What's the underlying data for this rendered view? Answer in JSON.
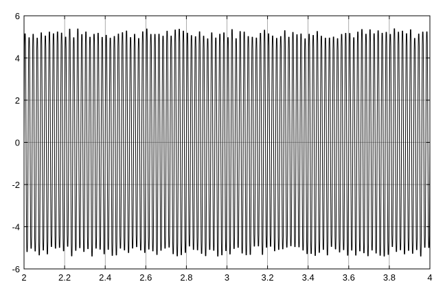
{
  "chart_data": {
    "type": "line",
    "title": "",
    "xlabel": "",
    "ylabel": "",
    "xlim": [
      2,
      4
    ],
    "ylim": [
      -6,
      6
    ],
    "grid": true,
    "x_ticks": [
      2,
      2.2,
      2.4,
      2.6,
      2.8,
      3,
      3.2,
      3.4,
      3.6,
      3.8,
      4
    ],
    "x_tick_labels": [
      "2",
      "2.2",
      "2.4",
      "2.6",
      "2.8",
      "3",
      "3.2",
      "3.4",
      "3.6",
      "3.8",
      "4"
    ],
    "y_ticks": [
      -6,
      -4,
      -2,
      0,
      2,
      4,
      6
    ],
    "y_tick_labels": [
      "-6",
      "-4",
      "-2",
      "0",
      "2",
      "4",
      "6"
    ],
    "series": [
      {
        "signal": {
          "frequency_hz": 50,
          "amplitude_min": 4.3,
          "amplitude_max": 5.4,
          "min_value": -5.6,
          "max_value": 5.4
        }
      }
    ]
  }
}
